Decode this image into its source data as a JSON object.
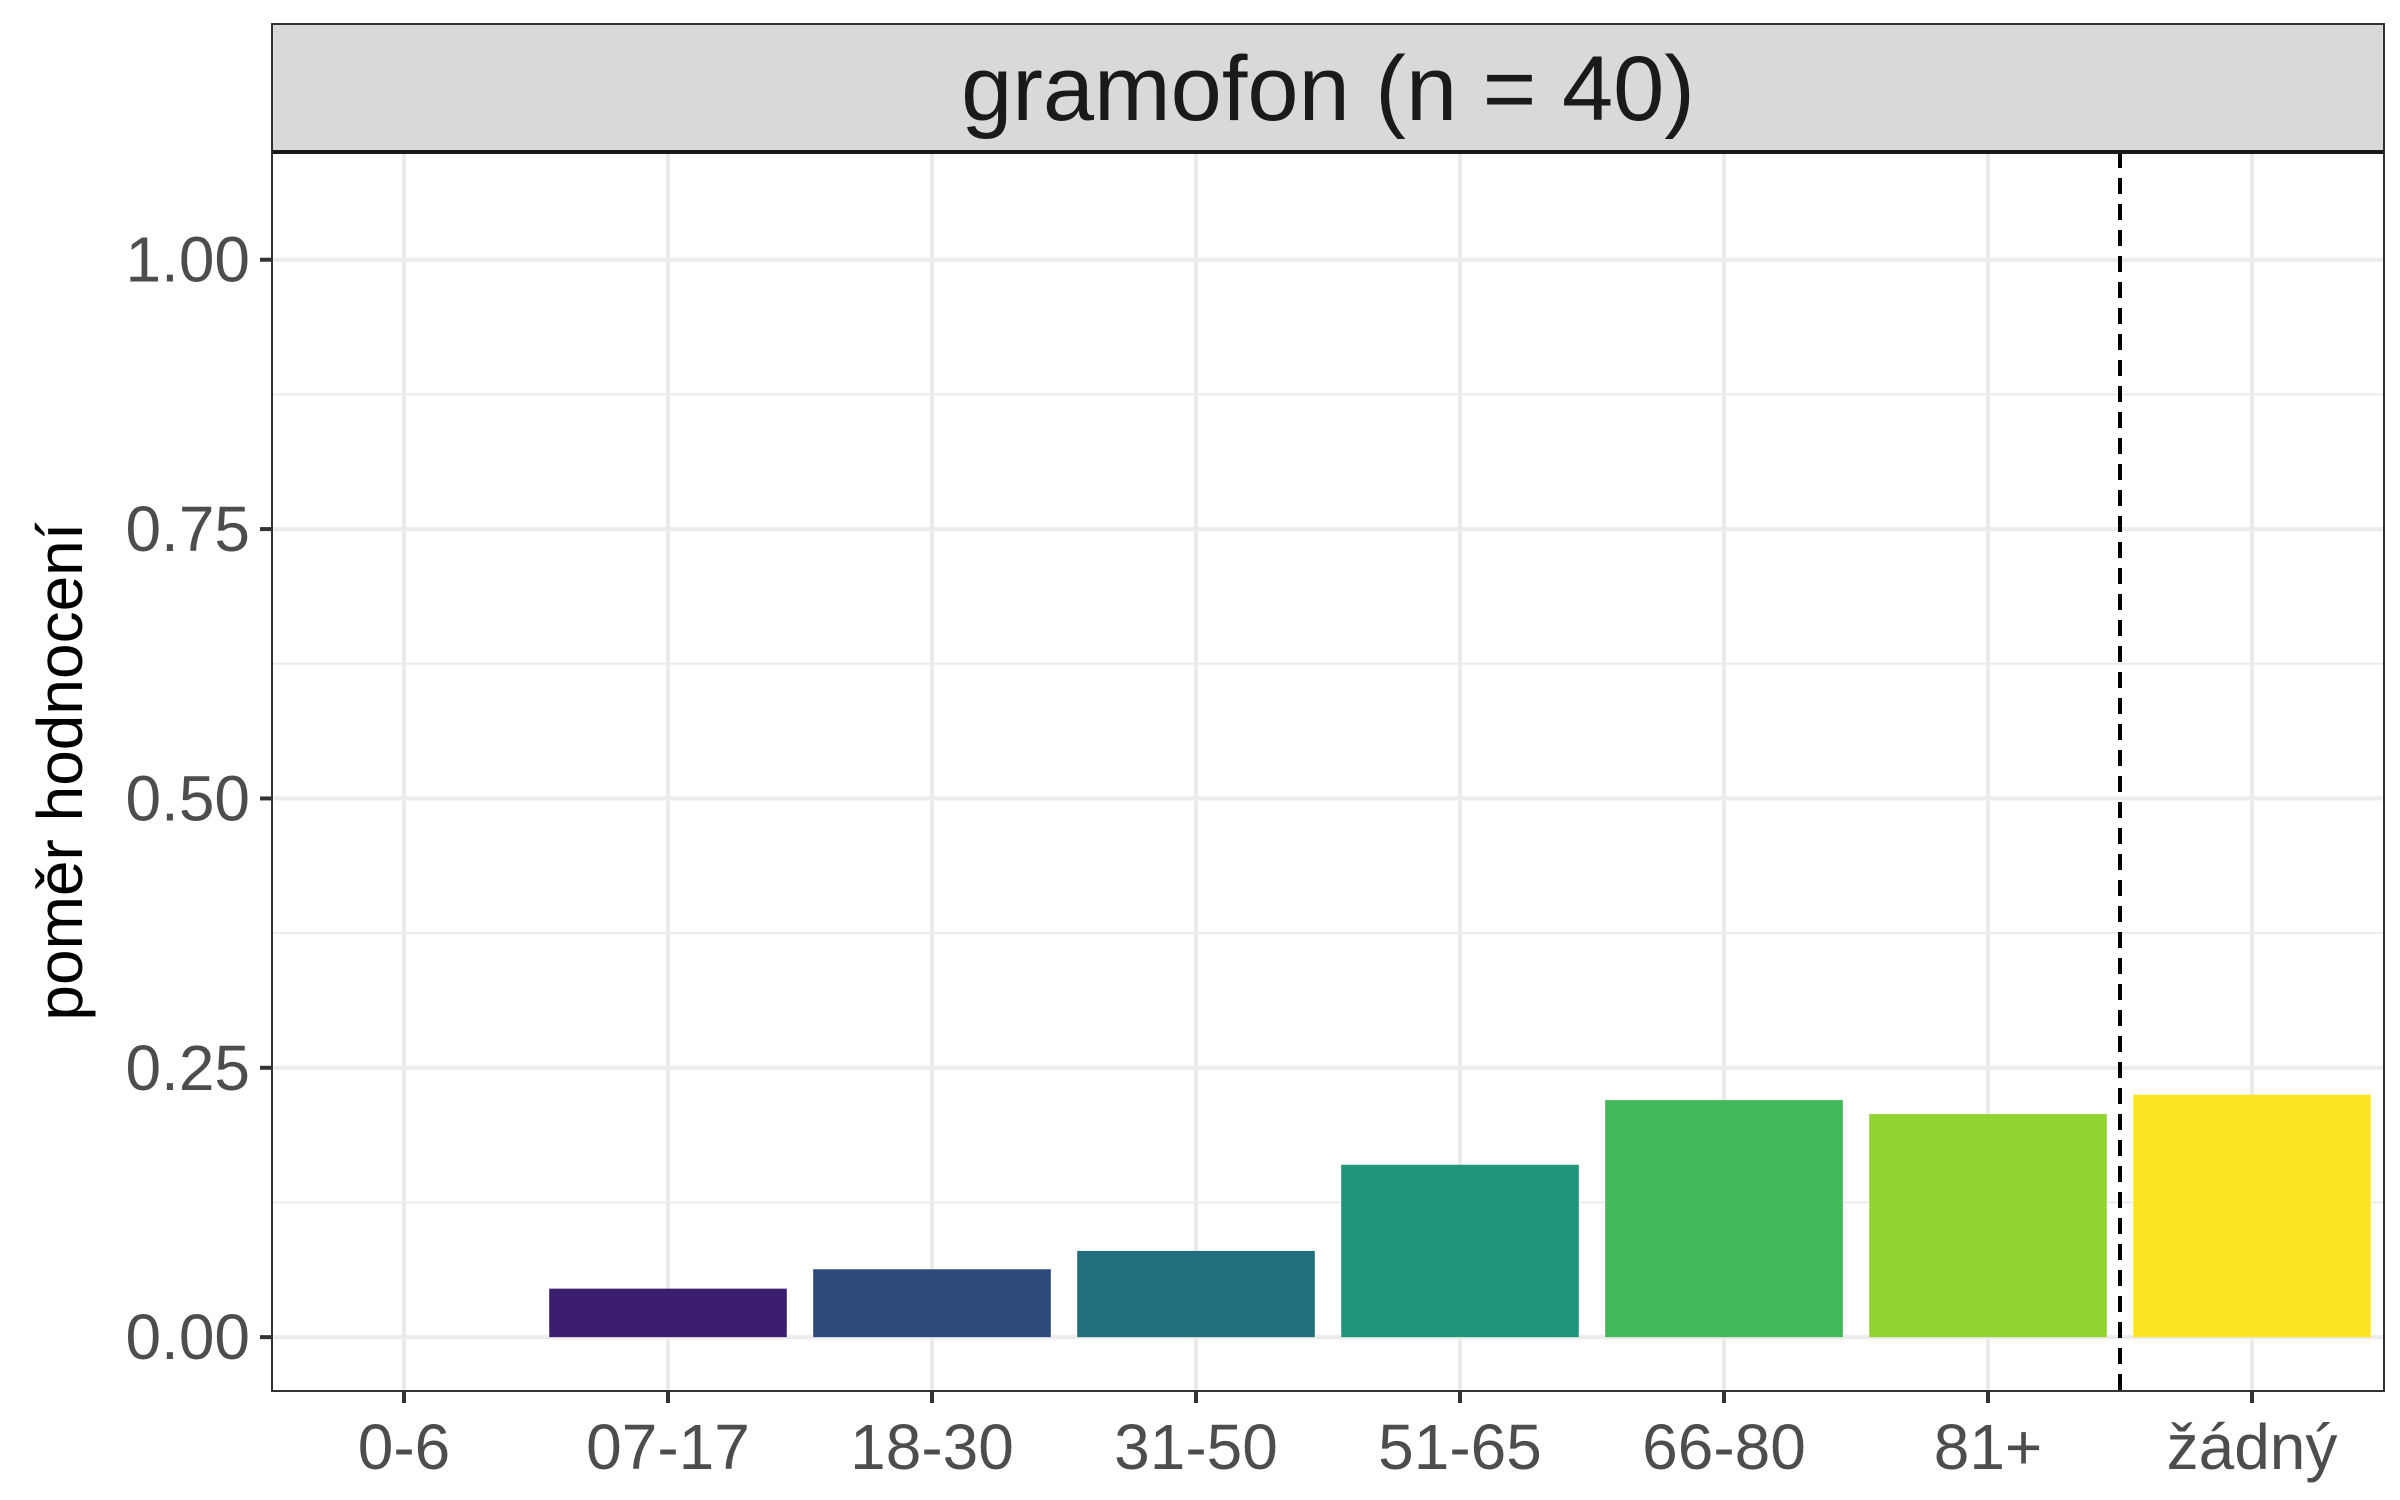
{
  "chart_data": {
    "type": "bar",
    "title": "",
    "facet_label": "gramofon (n = 40)",
    "xlabel": "",
    "ylabel": "poměr hodnocení",
    "categories": [
      "0-6",
      "07-17",
      "18-30",
      "31-50",
      "51-65",
      "66-80",
      "81+",
      "žádný"
    ],
    "values": [
      0.0,
      0.045,
      0.063,
      0.08,
      0.16,
      0.22,
      0.207,
      0.225
    ],
    "colors": [
      "#440154",
      "#3b1f6e",
      "#2d4a7c",
      "#216e7e",
      "#21957a",
      "#41b95a",
      "#8fd432",
      "#fde621"
    ],
    "ylim": [
      -0.05,
      1.1
    ],
    "yticks": [
      0.0,
      0.25,
      0.5,
      0.75,
      1.0
    ],
    "ytick_labels": [
      "0.00",
      "0.25",
      "0.50",
      "0.75",
      "1.00"
    ],
    "grid": true,
    "reference_line": {
      "between": [
        "81+",
        "žádný"
      ],
      "style": "dashed",
      "color": "#000000"
    }
  }
}
